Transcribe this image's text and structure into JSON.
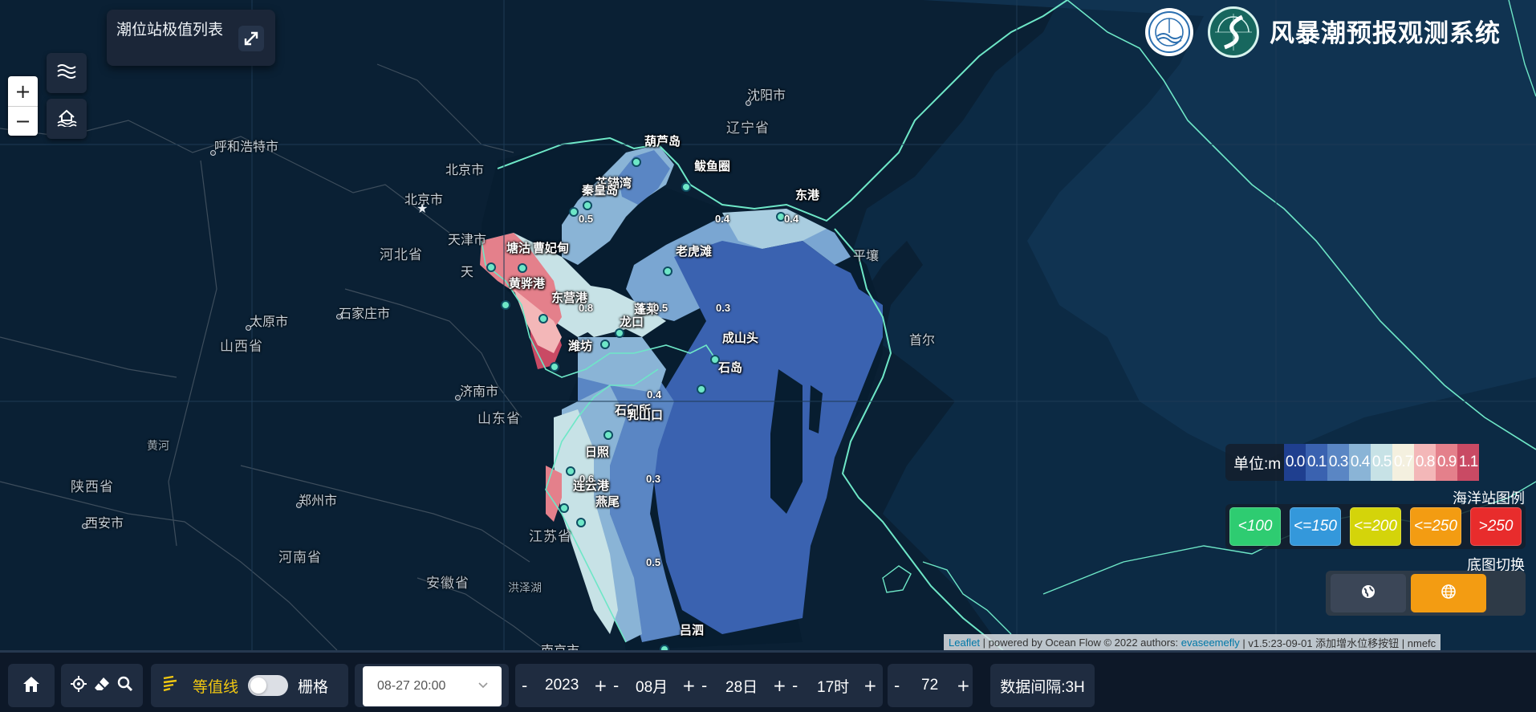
{
  "header": {
    "title": "风暴潮预报观测系统"
  },
  "panel": {
    "station_list_label": "潮位站极值列表"
  },
  "map_controls": {
    "zoom_in": "+",
    "zoom_out": "−"
  },
  "map_labels": {
    "cities": [
      "沈阳市",
      "北京市",
      "北京市",
      "天津市",
      "呼和浩特市",
      "太原市",
      "石家庄市",
      "济南市",
      "郑州市",
      "西安市",
      "南京市",
      "平壤",
      "首尔"
    ],
    "provinces": [
      "辽宁省",
      "河北省",
      "山西省",
      "山东省",
      "陕西省",
      "河南省",
      "安徽省",
      "江苏省",
      "黄河",
      "洪泽湖",
      "天"
    ]
  },
  "stations": [
    "葫芦岛",
    "鲅鱼圈",
    "芷锚湾",
    "秦皇岛",
    "东港",
    "老虎滩",
    "塘沽",
    "曹妃甸",
    "黄骅港",
    "东营港",
    "蓬莱",
    "龙口",
    "潍坊",
    "成山头",
    "石岛",
    "石臼所",
    "乳山口",
    "日照",
    "连云港",
    "燕尾",
    "吕泗"
  ],
  "isolines": [
    "0.4",
    "0.4",
    "0.5",
    "0.8",
    "0.5",
    "0.3",
    "0.4",
    "0.3",
    "0.6",
    "0.5"
  ],
  "unit_legend": {
    "label": "单位:m",
    "values": [
      "0.0",
      "0.1",
      "0.3",
      "0.4",
      "0.5",
      "0.7",
      "0.8",
      "0.9",
      "1.1"
    ],
    "colors": [
      "#1f3f8f",
      "#3a62b0",
      "#5a86c4",
      "#8ab4d6",
      "#c7e2e6",
      "#f4f0df",
      "#f3b7b8",
      "#e4808b",
      "#c94a64"
    ]
  },
  "station_legend": {
    "title": "海洋站图例",
    "items": [
      {
        "label": "<100",
        "color": "#2ecc71"
      },
      {
        "label": "<=150",
        "color": "#3498db"
      },
      {
        "label": "<=200",
        "color": "#d4d40a"
      },
      {
        "label": "<=250",
        "color": "#f39c12"
      },
      {
        "label": ">250",
        "color": "#e82c2c"
      }
    ]
  },
  "basemap_switch": {
    "title": "底图切换",
    "active_color": "#f39c12"
  },
  "attribution": {
    "leaflet": "Leaflet",
    "text1": " | powered by Ocean Flow © 2022 authors: ",
    "author": "evaseemefly",
    "text2": " | v1.5:23-09-01 添加增水位移按钮 | nmefc"
  },
  "bottom_bar": {
    "isoline_label": "等值线",
    "grid_label": "栅格",
    "date_value": "08-27 20:00",
    "minus": "-",
    "plus": "+",
    "year": "2023",
    "month": "08月",
    "day": "28日",
    "hour": "17时",
    "hours": "72",
    "interval": "数据间隔:3H"
  }
}
